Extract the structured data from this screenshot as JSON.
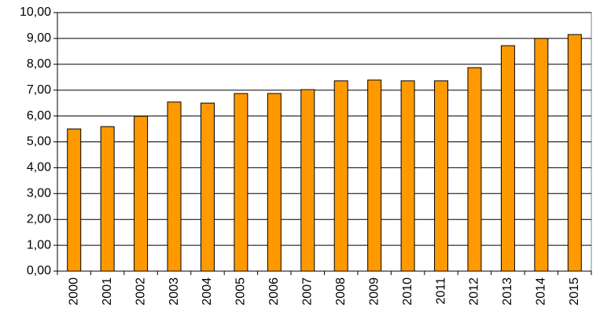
{
  "chart_data": {
    "type": "bar",
    "categories": [
      "2000",
      "2001",
      "2002",
      "2003",
      "2004",
      "2005",
      "2006",
      "2007",
      "2008",
      "2009",
      "2010",
      "2011",
      "2012",
      "2013",
      "2014",
      "2015"
    ],
    "values": [
      5.5,
      5.59,
      5.99,
      6.54,
      6.5,
      6.87,
      6.87,
      7.02,
      7.36,
      7.39,
      7.36,
      7.36,
      7.87,
      8.72,
      9.0,
      9.15
    ],
    "color": "#ff9900",
    "ylim": [
      0,
      10
    ],
    "yticks": [
      {
        "value": 0,
        "label": "0,00"
      },
      {
        "value": 1,
        "label": "1,00"
      },
      {
        "value": 2,
        "label": "2,00"
      },
      {
        "value": 3,
        "label": "3,00"
      },
      {
        "value": 4,
        "label": "4,00"
      },
      {
        "value": 5,
        "label": "5,00"
      },
      {
        "value": 6,
        "label": "6,00"
      },
      {
        "value": 7,
        "label": "7,00"
      },
      {
        "value": 8,
        "label": "8,00"
      },
      {
        "value": 9,
        "label": "9,00"
      },
      {
        "value": 10,
        "label": "10,00"
      }
    ],
    "grid": true
  }
}
